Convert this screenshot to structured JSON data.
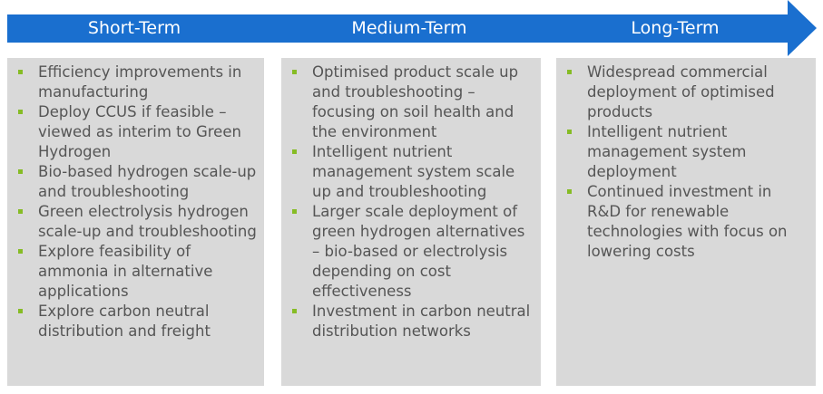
{
  "colors": {
    "arrow": "#1a6fcf",
    "panel": "#d9d9d9",
    "bullet": "#86bc25",
    "text": "#555555",
    "label": "#ffffff"
  },
  "phases": [
    {
      "title": "Short-Term",
      "items": [
        "Efficiency improvements in manufacturing",
        "Deploy CCUS if feasible – viewed as interim to Green Hydrogen",
        "Bio-based hydrogen scale-up and troubleshooting",
        "Green electrolysis hydrogen scale-up and troubleshooting",
        "Explore feasibility of ammonia in alternative applications",
        "Explore carbon neutral distribution and freight"
      ]
    },
    {
      "title": "Medium-Term",
      "items": [
        "Optimised product scale up and troubleshooting – focusing on soil health and the environment",
        "Intelligent nutrient management system scale up and troubleshooting",
        "Larger scale deployment of green hydrogen alternatives – bio-based or electrolysis depending on cost effectiveness",
        "Investment in carbon neutral distribution networks"
      ]
    },
    {
      "title": "Long-Term",
      "items": [
        "Widespread commercial deployment of optimised products",
        "Intelligent nutrient management system deployment",
        "Continued investment in R&D for renewable technologies with focus on lowering costs"
      ]
    }
  ]
}
